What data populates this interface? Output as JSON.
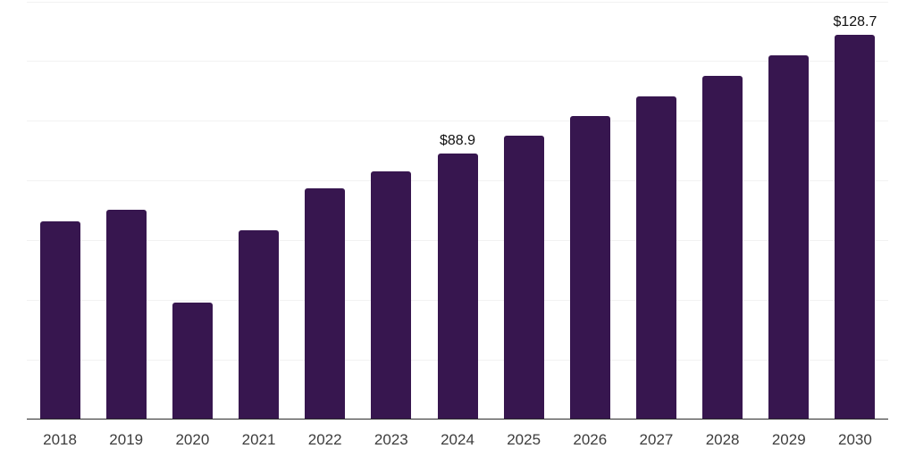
{
  "chart_data": {
    "type": "bar",
    "title": "",
    "xlabel": "",
    "ylabel": "",
    "categories": [
      "2018",
      "2019",
      "2020",
      "2021",
      "2022",
      "2023",
      "2024",
      "2025",
      "2026",
      "2027",
      "2028",
      "2029",
      "2030"
    ],
    "values": [
      66.2,
      70.1,
      39.0,
      63.4,
      77.3,
      83.0,
      88.9,
      94.9,
      101.5,
      108.1,
      114.9,
      121.8,
      128.7
    ],
    "value_labels": {
      "2024": "$88.9",
      "2030": "$128.7"
    },
    "ylim": [
      0,
      140
    ],
    "gridline_step": 20,
    "grid": "horizontal-only",
    "y_axis_tick_labels": "none",
    "legend": "none",
    "colors": {
      "bar": "#37164F",
      "gridline": "#f2f2f2",
      "axis_line": "#2b2b2b",
      "tick_label": "#3d3d3d",
      "value_label": "#111111",
      "background": "#ffffff"
    }
  }
}
